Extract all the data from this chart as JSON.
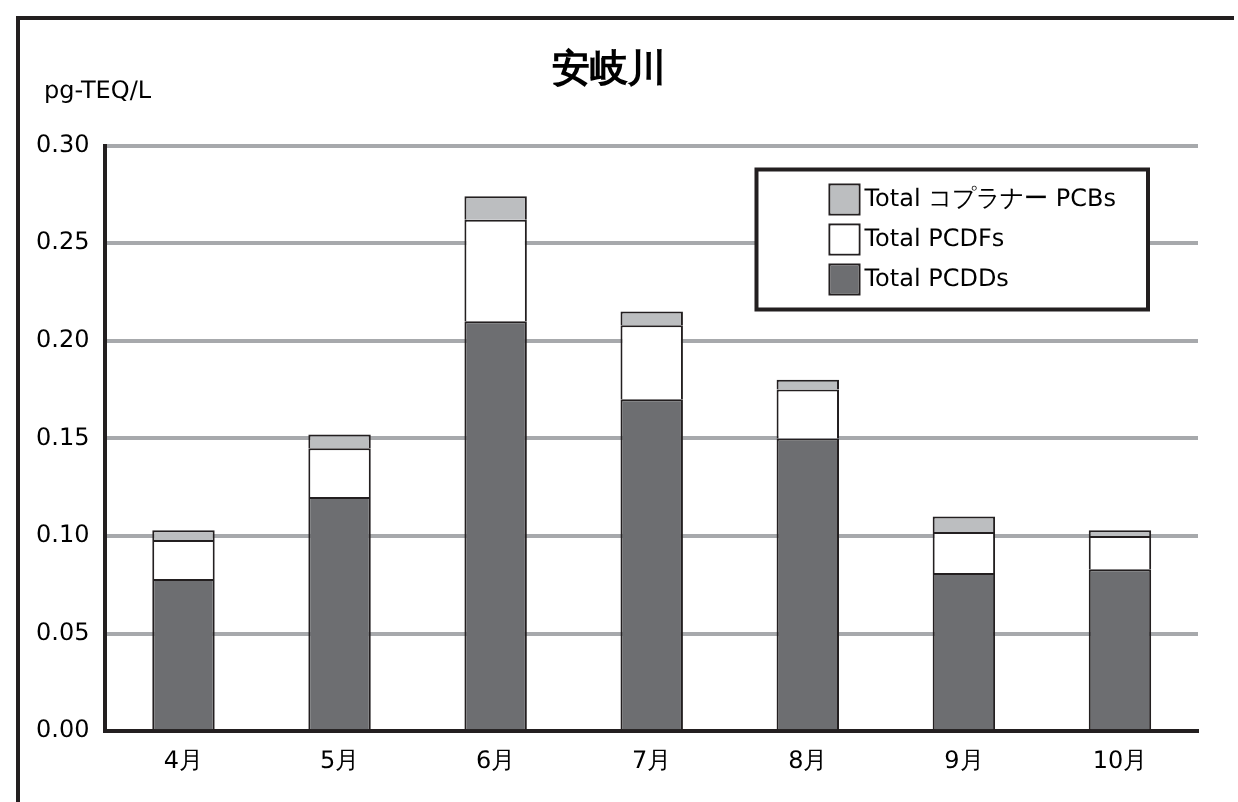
{
  "chart_data": {
    "type": "bar",
    "title": "安岐川",
    "ylabel": "pg-TEQ/L",
    "categories": [
      "4月",
      "5月",
      "6月",
      "7月",
      "8月",
      "9月",
      "10月"
    ],
    "stacked": true,
    "series": [
      {
        "name": "Total PCDDs",
        "color": "#6d6e71",
        "values": [
          0.078,
          0.12,
          0.21,
          0.17,
          0.15,
          0.081,
          0.083
        ]
      },
      {
        "name": "Total PCDFs",
        "color": "#ffffff",
        "values": [
          0.02,
          0.025,
          0.052,
          0.038,
          0.025,
          0.021,
          0.017
        ]
      },
      {
        "name": "Total コプラナー PCBs",
        "color": "#bcbec0",
        "values": [
          0.005,
          0.007,
          0.012,
          0.007,
          0.005,
          0.008,
          0.003
        ]
      }
    ],
    "ylim": [
      0,
      0.3
    ],
    "yticks": [
      {
        "value": 0,
        "label": "0.00"
      },
      0.05,
      {
        "value": 0.1,
        "label": "0.10"
      },
      0.15,
      {
        "value": 0.2,
        "label": "0.20"
      },
      0.25,
      {
        "value": 0.3,
        "label": "0.30"
      }
    ],
    "grid": "y",
    "legend": "top right"
  }
}
